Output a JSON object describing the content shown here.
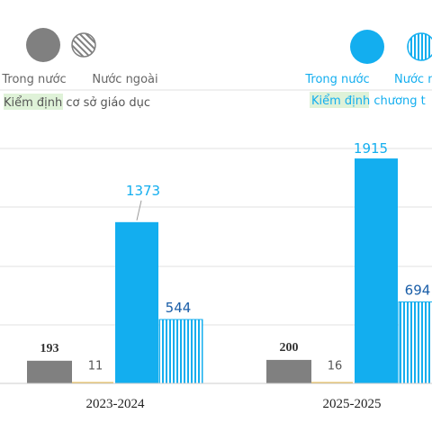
{
  "chart_data": {
    "type": "bar",
    "categories": [
      "2023-2024",
      "2025-2025"
    ],
    "legend_groups": [
      {
        "title": "Kiểm định cơ sở giáo dục",
        "items": [
          {
            "name": "Trong nước",
            "color": "#808080",
            "pattern": "solid",
            "shape": "circle"
          },
          {
            "name": "Nước ngoài",
            "color": "#808080",
            "pattern": "diagonal-stripes",
            "shape": "circle"
          }
        ]
      },
      {
        "title": "Kiểm định chương t",
        "items": [
          {
            "name": "Trong nước",
            "color": "#13AEEF",
            "pattern": "solid",
            "shape": "circle"
          },
          {
            "name": "Nước n",
            "color": "#13AEEF",
            "pattern": "vertical-stripes",
            "shape": "circle"
          }
        ]
      }
    ],
    "series": [
      {
        "group": 0,
        "color": "#808080",
        "pattern": "solid",
        "values": [
          193,
          200
        ]
      },
      {
        "group": 0,
        "color": "#E8B84A",
        "pattern": "solid",
        "values": [
          11,
          16
        ]
      },
      {
        "group": 1,
        "color": "#13AEEF",
        "pattern": "solid",
        "values": [
          1373,
          1915
        ]
      },
      {
        "group": 1,
        "color": "#13AEEF",
        "pattern": "vertical-stripes",
        "values": [
          544,
          694
        ]
      }
    ],
    "ylim": [
      0,
      2000
    ],
    "grid": true
  }
}
